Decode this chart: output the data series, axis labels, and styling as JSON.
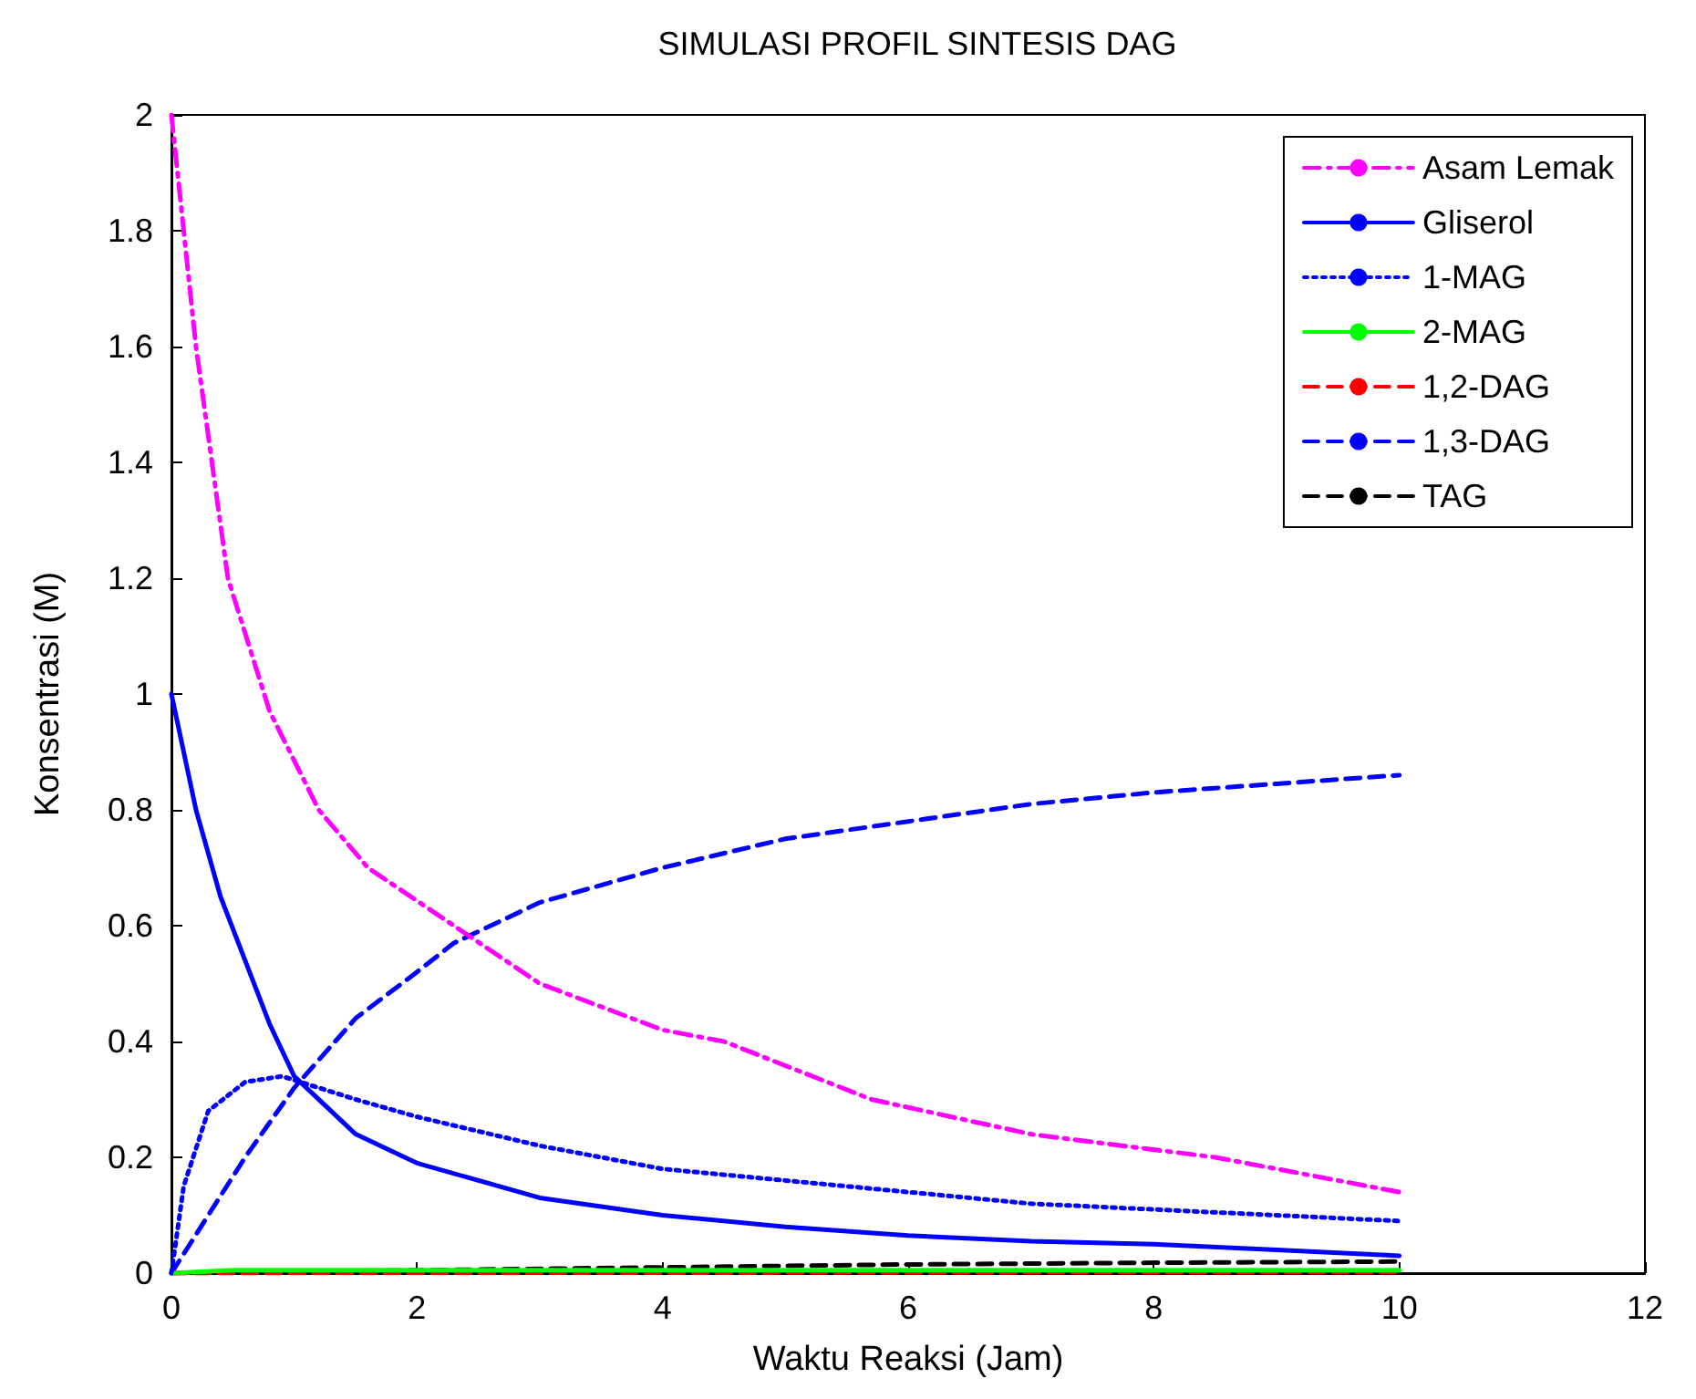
{
  "chart_data": {
    "type": "line",
    "title": "SIMULASI PROFIL SINTESIS DAG",
    "xlabel": "Waktu Reaksi (Jam)",
    "ylabel": "Konsentrasi (M)",
    "xlim": [
      0,
      12
    ],
    "xticks": [
      0,
      2,
      4,
      6,
      8,
      10,
      12
    ],
    "ylim": [
      0,
      2
    ],
    "yticks": [
      0,
      0.2,
      0.4,
      0.6,
      0.8,
      1,
      1.2,
      1.4,
      1.6,
      1.8,
      2
    ],
    "grid": false,
    "legend": "top right",
    "marker": "none",
    "series": [
      {
        "name": "Asam Lemak",
        "color": "#ff00ff",
        "line_style": "dashdot",
        "x": [
          0,
          0.2,
          0.46,
          0.8,
          1.2,
          1.6,
          2.3,
          3,
          4,
          4.5,
          5.7,
          7,
          8.5,
          10
        ],
        "values": [
          2,
          1.6,
          1.2,
          0.97,
          0.8,
          0.7,
          0.6,
          0.5,
          0.42,
          0.4,
          0.3,
          0.24,
          0.2,
          0.14
        ]
      },
      {
        "name": "Gliserol",
        "color": "#0000ff",
        "line_style": "solid",
        "x": [
          0,
          0.2,
          0.4,
          0.6,
          0.8,
          1,
          1.5,
          2,
          3,
          4,
          5,
          6,
          7,
          8,
          9,
          10
        ],
        "values": [
          1,
          0.8,
          0.65,
          0.54,
          0.43,
          0.34,
          0.24,
          0.19,
          0.13,
          0.1,
          0.08,
          0.065,
          0.055,
          0.05,
          0.04,
          0.03
        ]
      },
      {
        "name": "1-MAG",
        "color": "#0000ff",
        "line_style": "dotted",
        "x": [
          0,
          0.1,
          0.3,
          0.6,
          0.9,
          1.5,
          2,
          3,
          4,
          5,
          6,
          7,
          8,
          9,
          10
        ],
        "values": [
          0,
          0.15,
          0.28,
          0.33,
          0.34,
          0.3,
          0.27,
          0.22,
          0.18,
          0.16,
          0.14,
          0.12,
          0.11,
          0.1,
          0.09
        ]
      },
      {
        "name": "2-MAG",
        "color": "#00ff00",
        "line_style": "solid",
        "x": [
          0,
          0.5,
          10
        ],
        "values": [
          0,
          0.005,
          0.005
        ]
      },
      {
        "name": "1,2-DAG",
        "color": "#ff0000",
        "line_style": "dashed",
        "x": [
          0,
          10
        ],
        "values": [
          0,
          0.002
        ]
      },
      {
        "name": "1,3-DAG",
        "color": "#0000ff",
        "line_style": "dashed",
        "x": [
          0,
          0.3,
          0.6,
          1,
          1.5,
          2,
          2.3,
          3,
          4,
          5,
          6,
          7,
          8,
          9,
          10
        ],
        "values": [
          0,
          0.1,
          0.2,
          0.32,
          0.44,
          0.52,
          0.57,
          0.64,
          0.7,
          0.75,
          0.78,
          0.81,
          0.83,
          0.845,
          0.86
        ]
      },
      {
        "name": "TAG",
        "color": "#000000",
        "line_style": "dashed",
        "x": [
          0,
          2,
          4,
          6,
          8,
          10
        ],
        "values": [
          0,
          0.005,
          0.01,
          0.015,
          0.018,
          0.02
        ]
      }
    ]
  }
}
